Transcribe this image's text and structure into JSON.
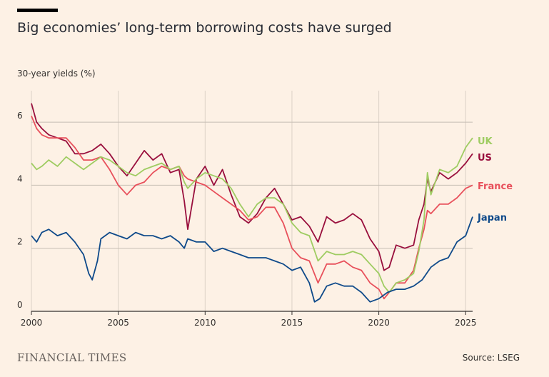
{
  "header": {
    "title": "Big economies’ long-term borrowing costs have surged",
    "subtitle": "30-year yields (%)"
  },
  "footer": {
    "publisher": "FINANCIAL TIMES",
    "source": "Source: LSEG"
  },
  "colors": {
    "background": "#fdf1e5",
    "UK": "#9fcc62",
    "US": "#990f3d",
    "France": "#e8505b",
    "Japan": "#0f4a8a",
    "grid": "#c6bdb3"
  },
  "chart_data": {
    "type": "line",
    "title": "Big economies’ long-term borrowing costs have surged",
    "ylabel": "30-year yields (%)",
    "xlabel": "",
    "xlim": [
      2000.0,
      2025.4
    ],
    "ylim": [
      0,
      7
    ],
    "x_ticks": [
      2000,
      2005,
      2010,
      2015,
      2020,
      2025
    ],
    "y_ticks": [
      0,
      2,
      4,
      6
    ],
    "grid": true,
    "legend": "direct labels at right end of lines",
    "series": [
      {
        "name": "UK",
        "x": [
          2000.0,
          2000.3,
          2000.6,
          2001.0,
          2001.5,
          2002.0,
          2002.5,
          2003.0,
          2003.5,
          2004.0,
          2004.5,
          2005.0,
          2005.5,
          2006.0,
          2006.5,
          2007.0,
          2007.5,
          2008.0,
          2008.5,
          2008.8,
          2009.0,
          2009.5,
          2010.0,
          2010.5,
          2011.0,
          2011.5,
          2012.0,
          2012.5,
          2013.0,
          2013.5,
          2014.0,
          2014.5,
          2015.0,
          2015.5,
          2016.0,
          2016.5,
          2017.0,
          2017.5,
          2018.0,
          2018.5,
          2019.0,
          2019.5,
          2020.0,
          2020.3,
          2020.6,
          2021.0,
          2021.5,
          2022.0,
          2022.3,
          2022.6,
          2022.8,
          2023.0,
          2023.5,
          2024.0,
          2024.5,
          2025.0,
          2025.4
        ],
        "values": [
          4.7,
          4.5,
          4.6,
          4.8,
          4.6,
          4.9,
          4.7,
          4.5,
          4.7,
          4.9,
          4.8,
          4.6,
          4.4,
          4.3,
          4.5,
          4.6,
          4.7,
          4.5,
          4.6,
          4.1,
          3.9,
          4.2,
          4.4,
          4.3,
          4.2,
          3.9,
          3.4,
          3.0,
          3.4,
          3.6,
          3.6,
          3.4,
          2.8,
          2.5,
          2.4,
          1.6,
          1.9,
          1.8,
          1.8,
          1.9,
          1.8,
          1.5,
          1.2,
          0.8,
          0.6,
          0.9,
          1.0,
          1.2,
          1.9,
          2.9,
          4.4,
          3.7,
          4.5,
          4.4,
          4.6,
          5.2,
          5.5
        ]
      },
      {
        "name": "US",
        "x": [
          2000.0,
          2000.3,
          2000.6,
          2001.0,
          2001.5,
          2002.0,
          2002.5,
          2003.0,
          2003.5,
          2004.0,
          2004.5,
          2005.0,
          2005.5,
          2006.0,
          2006.5,
          2007.0,
          2007.5,
          2008.0,
          2008.5,
          2008.8,
          2009.0,
          2009.5,
          2010.0,
          2010.5,
          2011.0,
          2011.5,
          2012.0,
          2012.5,
          2013.0,
          2013.5,
          2014.0,
          2014.5,
          2015.0,
          2015.5,
          2016.0,
          2016.5,
          2017.0,
          2017.5,
          2018.0,
          2018.5,
          2019.0,
          2019.5,
          2020.0,
          2020.3,
          2020.6,
          2021.0,
          2021.5,
          2022.0,
          2022.3,
          2022.6,
          2022.8,
          2023.0,
          2023.5,
          2024.0,
          2024.5,
          2025.0,
          2025.4
        ],
        "values": [
          6.6,
          6.0,
          5.8,
          5.6,
          5.5,
          5.4,
          5.0,
          5.0,
          5.1,
          5.3,
          5.0,
          4.6,
          4.3,
          4.7,
          5.1,
          4.8,
          5.0,
          4.4,
          4.5,
          3.5,
          2.6,
          4.2,
          4.6,
          4.0,
          4.5,
          3.7,
          3.0,
          2.8,
          3.1,
          3.6,
          3.9,
          3.4,
          2.9,
          3.0,
          2.7,
          2.2,
          3.0,
          2.8,
          2.9,
          3.1,
          2.9,
          2.3,
          1.9,
          1.3,
          1.4,
          2.1,
          2.0,
          2.1,
          2.9,
          3.4,
          4.2,
          3.8,
          4.4,
          4.2,
          4.4,
          4.7,
          5.0
        ]
      },
      {
        "name": "France",
        "x": [
          2000.0,
          2000.3,
          2000.6,
          2001.0,
          2001.5,
          2002.0,
          2002.5,
          2003.0,
          2003.5,
          2004.0,
          2004.5,
          2005.0,
          2005.5,
          2006.0,
          2006.5,
          2007.0,
          2007.5,
          2008.0,
          2008.5,
          2008.8,
          2009.0,
          2009.5,
          2010.0,
          2010.5,
          2011.0,
          2011.5,
          2012.0,
          2012.5,
          2013.0,
          2013.5,
          2014.0,
          2014.5,
          2015.0,
          2015.5,
          2016.0,
          2016.5,
          2017.0,
          2017.5,
          2018.0,
          2018.5,
          2019.0,
          2019.5,
          2020.0,
          2020.3,
          2020.6,
          2021.0,
          2021.5,
          2022.0,
          2022.3,
          2022.6,
          2022.8,
          2023.0,
          2023.5,
          2024.0,
          2024.5,
          2025.0,
          2025.4
        ],
        "values": [
          6.2,
          5.8,
          5.6,
          5.5,
          5.5,
          5.5,
          5.2,
          4.8,
          4.8,
          4.9,
          4.5,
          4.0,
          3.7,
          4.0,
          4.1,
          4.4,
          4.6,
          4.5,
          4.6,
          4.3,
          4.2,
          4.1,
          4.0,
          3.8,
          3.6,
          3.4,
          3.2,
          2.9,
          3.0,
          3.3,
          3.3,
          2.8,
          2.0,
          1.7,
          1.6,
          0.9,
          1.5,
          1.5,
          1.6,
          1.4,
          1.3,
          0.9,
          0.7,
          0.4,
          0.6,
          0.9,
          0.9,
          1.3,
          2.0,
          2.6,
          3.2,
          3.1,
          3.4,
          3.4,
          3.6,
          3.9,
          4.0
        ]
      },
      {
        "name": "Japan",
        "x": [
          2000.0,
          2000.3,
          2000.6,
          2001.0,
          2001.5,
          2002.0,
          2002.5,
          2003.0,
          2003.3,
          2003.5,
          2003.8,
          2004.0,
          2004.5,
          2005.0,
          2005.5,
          2006.0,
          2006.5,
          2007.0,
          2007.5,
          2008.0,
          2008.5,
          2008.8,
          2009.0,
          2009.5,
          2010.0,
          2010.5,
          2011.0,
          2011.5,
          2012.0,
          2012.5,
          2013.0,
          2013.5,
          2014.0,
          2014.5,
          2015.0,
          2015.5,
          2016.0,
          2016.3,
          2016.6,
          2017.0,
          2017.5,
          2018.0,
          2018.5,
          2019.0,
          2019.5,
          2020.0,
          2020.5,
          2021.0,
          2021.5,
          2022.0,
          2022.5,
          2023.0,
          2023.5,
          2024.0,
          2024.5,
          2025.0,
          2025.4
        ],
        "values": [
          2.4,
          2.2,
          2.5,
          2.6,
          2.4,
          2.5,
          2.2,
          1.8,
          1.2,
          1.0,
          1.6,
          2.3,
          2.5,
          2.4,
          2.3,
          2.5,
          2.4,
          2.4,
          2.3,
          2.4,
          2.2,
          2.0,
          2.3,
          2.2,
          2.2,
          1.9,
          2.0,
          1.9,
          1.8,
          1.7,
          1.7,
          1.7,
          1.6,
          1.5,
          1.3,
          1.4,
          0.9,
          0.3,
          0.4,
          0.8,
          0.9,
          0.8,
          0.8,
          0.6,
          0.3,
          0.4,
          0.6,
          0.7,
          0.7,
          0.8,
          1.0,
          1.4,
          1.6,
          1.7,
          2.2,
          2.4,
          3.0
        ]
      }
    ]
  }
}
